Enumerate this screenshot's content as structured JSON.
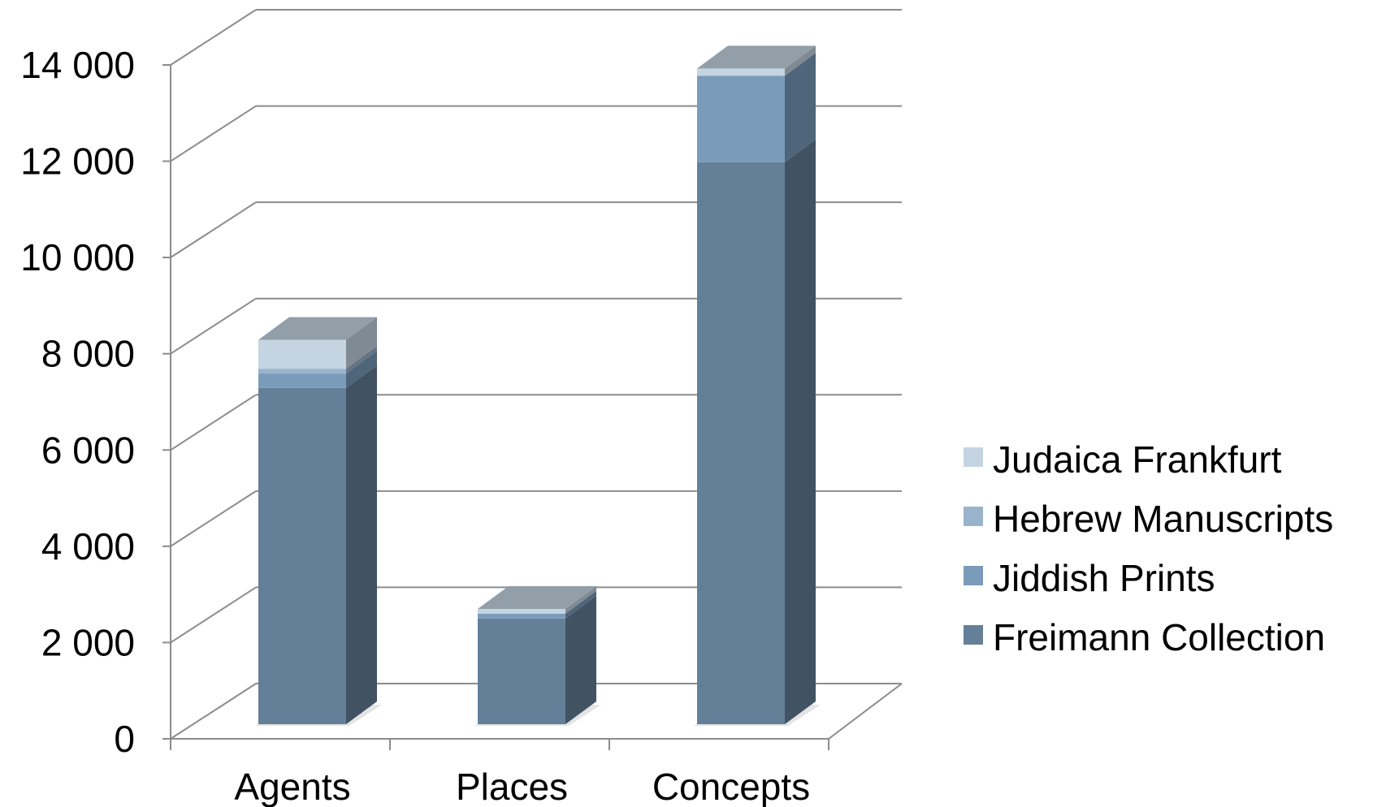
{
  "chart_data": {
    "type": "bar",
    "stacked": true,
    "three_d": true,
    "categories": [
      "Agents",
      "Places",
      "Concepts"
    ],
    "series": [
      {
        "name": "Freimann Collection",
        "values": [
          7000,
          2200,
          11700
        ],
        "color": "#647f98"
      },
      {
        "name": "Jiddish Prints",
        "values": [
          300,
          100,
          1800
        ],
        "color": "#7a9bba"
      },
      {
        "name": "Hebrew Manuscripts",
        "values": [
          100,
          0,
          0
        ],
        "color": "#9ab3cd"
      },
      {
        "name": "Judaica Frankfurt",
        "values": [
          600,
          100,
          150
        ],
        "color": "#c5d4e1"
      }
    ],
    "yticks": [
      "0",
      "2 000",
      "4 000",
      "6 000",
      "8 000",
      "10 000",
      "12 000",
      "14 000"
    ],
    "ylim": [
      0,
      14000
    ],
    "grid": true,
    "legend": "right"
  }
}
